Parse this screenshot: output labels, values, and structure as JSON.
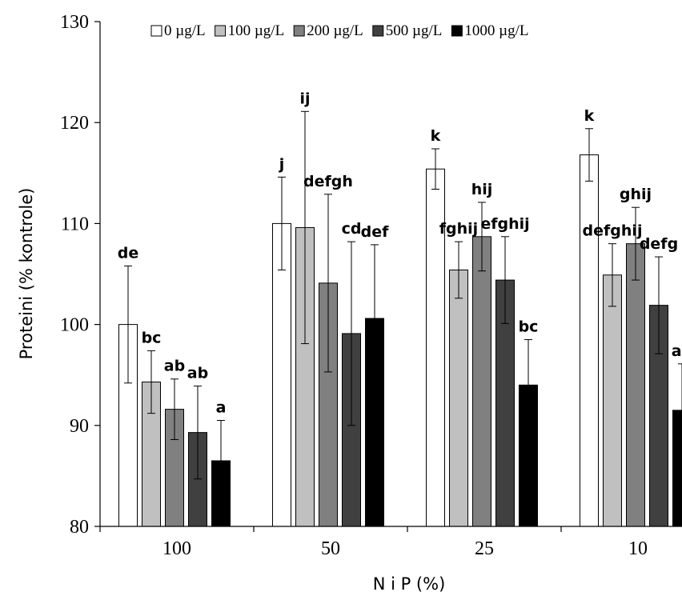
{
  "chart_data": {
    "type": "bar",
    "xlabel": "N i P (%)",
    "ylabel": "Proteini (% kontrole)",
    "ylim": [
      80,
      130
    ],
    "yticks": [
      80,
      90,
      100,
      110,
      120,
      130
    ],
    "grid": false,
    "legend_position": "top",
    "categories": [
      "100",
      "50",
      "25",
      "10"
    ],
    "series": [
      {
        "name": "0 µg/L",
        "color": "#ffffff",
        "values": [
          100.0,
          110.0,
          115.4,
          116.8
        ],
        "errors": [
          5.8,
          4.6,
          2.0,
          2.6
        ],
        "labels": [
          "de",
          "j",
          "k",
          "k"
        ]
      },
      {
        "name": "100 µg/L",
        "color": "#c0c0c0",
        "values": [
          94.3,
          109.6,
          105.4,
          104.9
        ],
        "errors": [
          3.1,
          11.5,
          2.8,
          3.1
        ],
        "labels": [
          "bc",
          "ij",
          "fghij",
          "defghij"
        ]
      },
      {
        "name": "200 µg/L",
        "color": "#808080",
        "values": [
          91.6,
          104.1,
          108.7,
          108.0
        ],
        "errors": [
          3.0,
          8.8,
          3.4,
          3.6
        ],
        "labels": [
          "ab",
          "defgh",
          "hij",
          "ghij"
        ]
      },
      {
        "name": "500 µg/L",
        "color": "#404040",
        "values": [
          89.3,
          99.1,
          104.4,
          101.9
        ],
        "errors": [
          4.6,
          9.1,
          4.3,
          4.8
        ],
        "labels": [
          "ab",
          "cd",
          "efghij",
          "defg"
        ]
      },
      {
        "name": "1000 µg/L",
        "color": "#000000",
        "values": [
          86.5,
          100.6,
          94.0,
          91.5
        ],
        "errors": [
          4.0,
          7.3,
          4.5,
          4.6
        ],
        "labels": [
          "a",
          "def",
          "bc",
          "ab"
        ]
      }
    ]
  }
}
